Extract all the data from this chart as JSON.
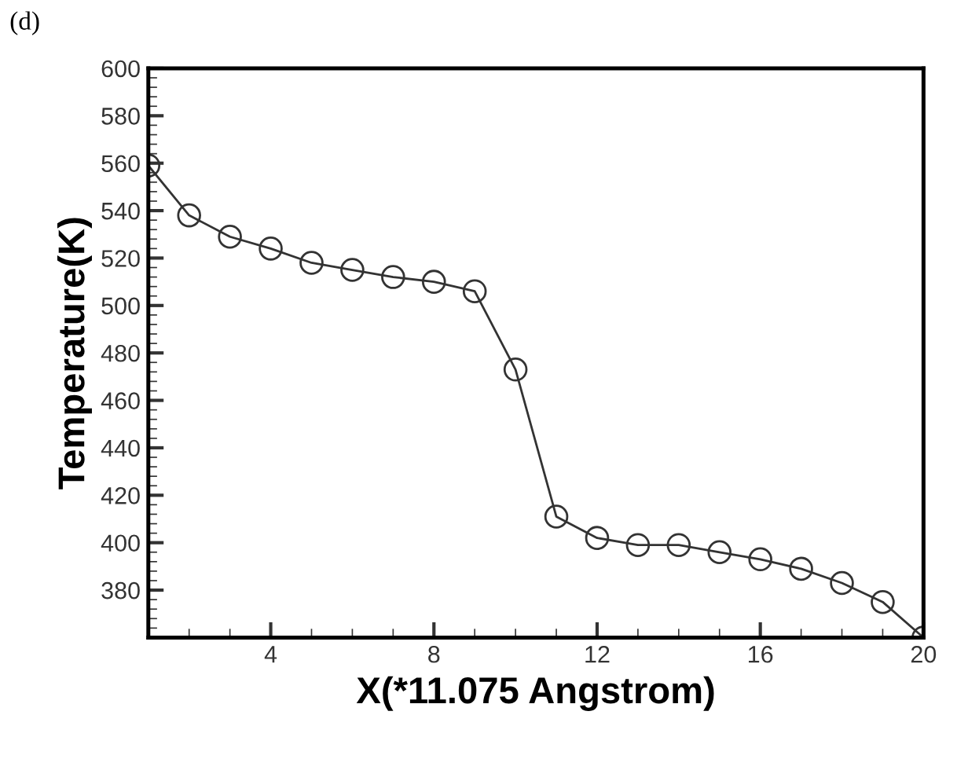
{
  "chart_data": {
    "type": "line",
    "xlabel": "X(*11.075 Angstrom)",
    "ylabel": "Temperature(K)",
    "annotations": [
      "(d)"
    ],
    "x": [
      1,
      2,
      3,
      4,
      5,
      6,
      7,
      8,
      9,
      10,
      11,
      12,
      13,
      14,
      15,
      16,
      17,
      18,
      19,
      20
    ],
    "series": [
      {
        "color": "#333333",
        "values": [
          559,
          538,
          529,
          524,
          518,
          515,
          512,
          510,
          506,
          473,
          411,
          402,
          399,
          399,
          396,
          393,
          389,
          383,
          375,
          360
        ]
      }
    ],
    "xlim": [
      1,
      20
    ],
    "xticks": [
      4,
      8,
      12,
      16,
      20
    ],
    "ylim": [
      360,
      600
    ],
    "yticks": [
      {
        "value": 360,
        "label": null
      },
      380,
      400,
      420,
      440,
      460,
      480,
      500,
      520,
      540,
      560,
      580,
      600
    ],
    "marker": "circle",
    "line_style": "solid",
    "grid": false,
    "legend": false
  }
}
